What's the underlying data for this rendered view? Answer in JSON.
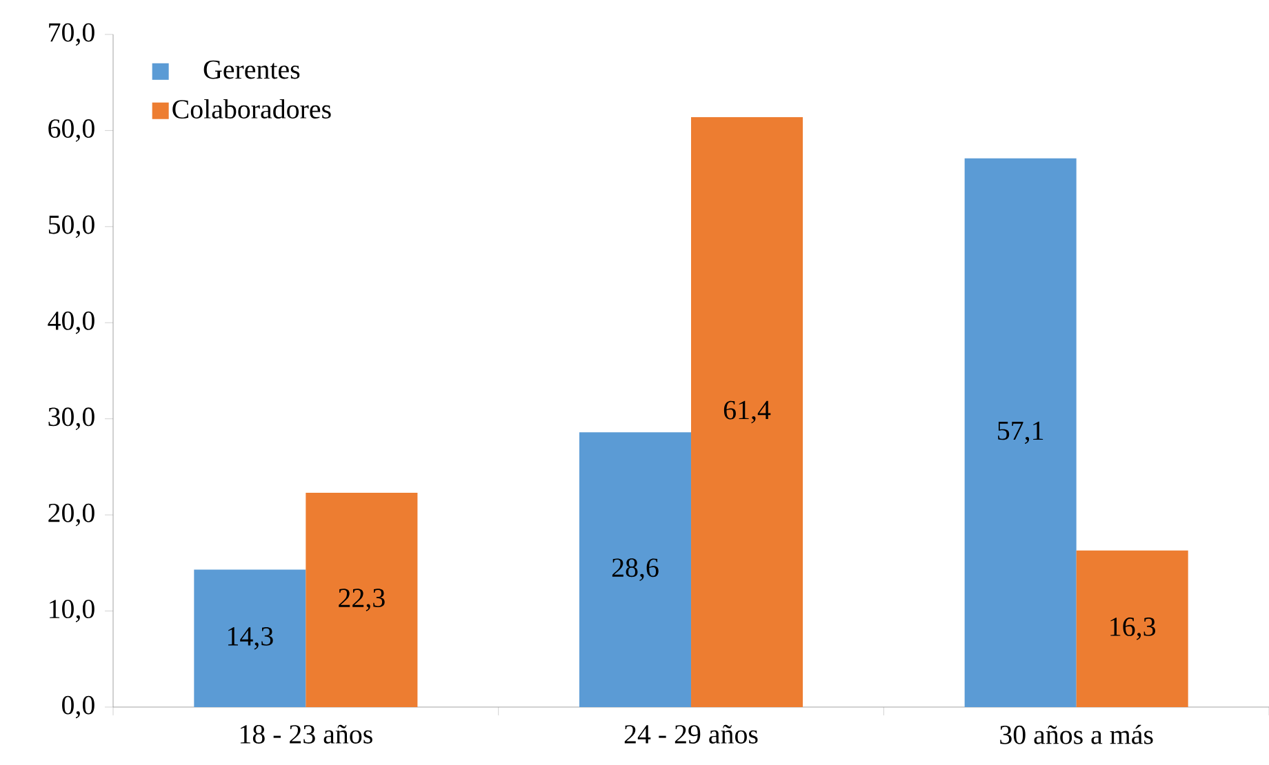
{
  "chart_data": {
    "type": "bar",
    "categories": [
      "18 - 23 años",
      "24 - 29 años",
      "30 años a más"
    ],
    "series": [
      {
        "name": "Gerentes",
        "color": "#5b9bd5",
        "values": [
          14.3,
          28.6,
          57.1
        ],
        "value_labels": [
          "14,3",
          "28,6",
          "57,1"
        ]
      },
      {
        "name": "Colaboradores",
        "color": "#ed7d31",
        "values": [
          22.3,
          61.4,
          16.3
        ],
        "value_labels": [
          "22,3",
          "61,4",
          "16,3"
        ]
      }
    ],
    "ylim": [
      0,
      70
    ],
    "yticks": [
      {
        "value": 0,
        "label": "0,0"
      },
      {
        "value": 10,
        "label": "10,0"
      },
      {
        "value": 20,
        "label": "20,0"
      },
      {
        "value": 30,
        "label": "30,0"
      },
      {
        "value": 40,
        "label": "40,0"
      },
      {
        "value": 50,
        "label": "50,0"
      },
      {
        "value": 60,
        "label": "60,0"
      },
      {
        "value": 70,
        "label": "70,0"
      }
    ],
    "grid": false,
    "legend": "top left"
  }
}
